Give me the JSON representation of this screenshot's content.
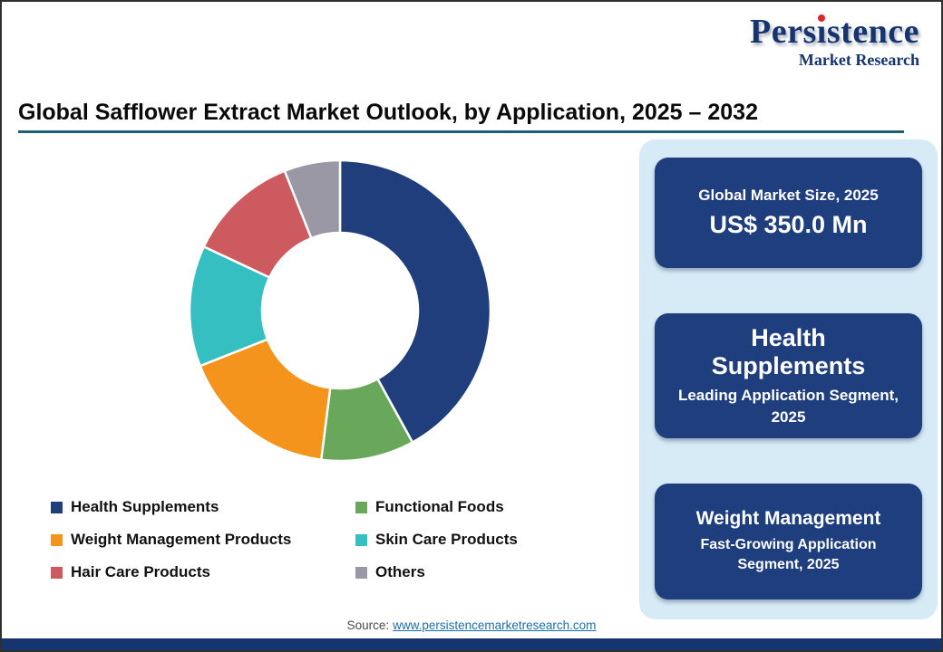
{
  "logo": {
    "brand": "Persistence",
    "tagline": "Market Research"
  },
  "header": {
    "title": "Global Safflower Extract Market Outlook, by Application, 2025 – 2032"
  },
  "chart_data": {
    "type": "pie",
    "donut": true,
    "title": "Global Safflower Extract Market Outlook, by Application, 2025 – 2032",
    "categories": [
      "Health Supplements",
      "Functional Foods",
      "Weight Management Products",
      "Skin Care Products",
      "Hair Care Products",
      "Others"
    ],
    "values": [
      42,
      10,
      17,
      13,
      12,
      6
    ],
    "unit": "percent-share-estimated",
    "colors": [
      "#203E7C",
      "#69A85B",
      "#F5941D",
      "#35BFC0",
      "#CD5A5F",
      "#9B98A6"
    ],
    "start_angle_deg": 0,
    "direction": "clockwise",
    "legend_position": "bottom",
    "inner_radius_ratio": 0.52
  },
  "side_panel": {
    "cards": [
      {
        "line1": "Global Market Size, 2025",
        "line2": "US$ 350.0 Mn"
      },
      {
        "line1": "Health Supplements",
        "line2": "Leading Application Segment, 2025"
      },
      {
        "line1": "Weight Management",
        "line2": "Fast-Growing Application Segment, 2025"
      }
    ]
  },
  "footer": {
    "source_label": "Source:",
    "source_url": "www.persistencemarketresearch.com"
  },
  "colors": {
    "navy": "#1F3E7D",
    "brand-navy": "#16356F",
    "brand-red": "#E0262C",
    "panel-bg": "#D6EBF6",
    "link": "#1B6FA8",
    "underline": "#1F5F74"
  }
}
